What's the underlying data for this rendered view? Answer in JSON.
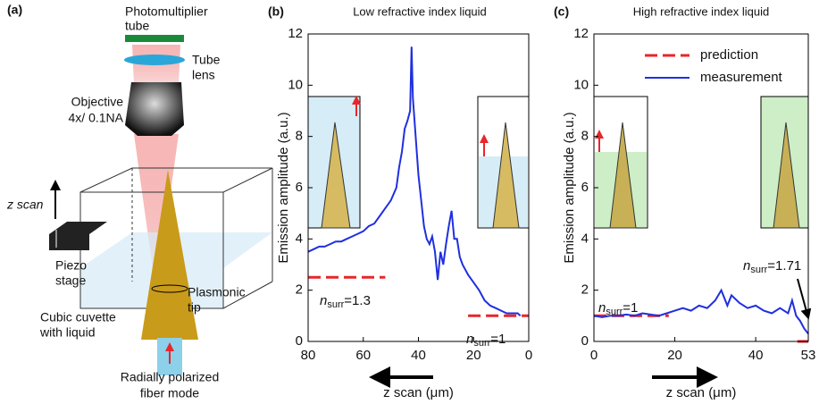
{
  "diagram": {
    "panel_label": "(a)",
    "photomultiplier": [
      "Photomultiplier",
      "tube"
    ],
    "tube_lens": [
      "Tube",
      "lens"
    ],
    "objective": [
      "Objective",
      "4x/ 0.1NA"
    ],
    "z_scan": "z scan",
    "piezo": [
      "Piezo",
      "stage"
    ],
    "cuvette": [
      "Cubic cuvette",
      "with liquid"
    ],
    "tip": [
      "Plasmonic",
      "tip"
    ],
    "fiber": [
      "Radially polarized",
      "fiber mode"
    ]
  },
  "chart_data": [
    {
      "type": "line",
      "panel_label": "(b)",
      "title": "Low refractive index liquid",
      "x_label": "z scan (μm)",
      "y_label": "Emission amplitude (a.u.)",
      "xlim": [
        80,
        0
      ],
      "xticks": [
        80,
        60,
        40,
        20,
        0
      ],
      "ylim": [
        0,
        12
      ],
      "yticks": [
        0,
        2,
        4,
        6,
        8,
        10,
        12
      ],
      "legend": false,
      "series": [
        {
          "name": "prediction",
          "color": "#e8262b",
          "dashed": true,
          "x": [
            80,
            52,
            null,
            22,
            0
          ],
          "values": [
            2.5,
            2.5,
            null,
            1,
            1
          ]
        },
        {
          "name": "measurement",
          "color": "#1f2fe0",
          "dashed": false,
          "x": [
            80,
            78,
            76,
            74,
            72,
            70,
            68,
            66,
            64,
            62,
            60,
            58,
            56,
            54,
            52,
            50,
            48,
            47,
            46,
            45,
            44,
            43,
            42.5,
            42,
            41,
            40,
            39,
            38,
            37,
            36,
            35,
            34,
            33,
            32,
            31,
            30,
            29,
            28,
            27,
            26,
            25,
            24,
            22,
            20,
            18,
            16,
            14,
            12,
            10,
            8,
            6,
            4,
            3
          ],
          "values": [
            3.5,
            3.6,
            3.7,
            3.7,
            3.8,
            3.9,
            3.9,
            4.0,
            4.1,
            4.2,
            4.3,
            4.5,
            4.6,
            4.9,
            5.2,
            5.5,
            6.0,
            6.8,
            7.4,
            8.3,
            8.6,
            9.0,
            11.5,
            9.5,
            8.0,
            6.5,
            5.5,
            4.5,
            4.0,
            3.8,
            4.1,
            3.5,
            2.4,
            3.5,
            3.0,
            3.8,
            4.5,
            5.1,
            4.0,
            4.0,
            3.3,
            3.0,
            2.6,
            2.3,
            2.0,
            1.6,
            1.4,
            1.3,
            1.2,
            1.1,
            1.1,
            1.1,
            1.0
          ]
        }
      ],
      "annotations": [
        {
          "italic": "n",
          "sub": "surr",
          "text": "=1.3"
        },
        {
          "italic": "n",
          "sub": "surr",
          "text": "=1"
        }
      ]
    },
    {
      "type": "line",
      "panel_label": "(c)",
      "title": "High refractive index liquid",
      "x_label": "z scan (μm)",
      "y_label": "Emission amplitude (a.u.)",
      "xlim": [
        0,
        53
      ],
      "xticks": [
        0,
        20,
        40,
        53
      ],
      "ylim": [
        0,
        12
      ],
      "yticks": [
        0,
        2,
        4,
        6,
        8,
        10,
        12
      ],
      "legend": true,
      "legend_loc": "upper right",
      "series": [
        {
          "name": "prediction",
          "color": "#e8262b",
          "dashed": true,
          "x": [
            0,
            18.5,
            null,
            50.3,
            53
          ],
          "values": [
            1,
            1,
            null,
            0,
            0
          ]
        },
        {
          "name": "measurement",
          "color": "#1f2fe0",
          "dashed": false,
          "x": [
            0,
            2,
            4,
            6,
            8,
            10,
            12,
            14,
            16,
            18,
            20,
            22,
            24,
            26,
            28,
            30,
            31.5,
            33,
            34,
            36,
            38,
            40,
            42,
            44,
            46,
            48,
            49,
            50,
            51,
            52,
            53
          ],
          "values": [
            1.0,
            0.95,
            1.0,
            1.0,
            1.05,
            1.0,
            1.1,
            1.05,
            1.0,
            1.1,
            1.2,
            1.3,
            1.2,
            1.4,
            1.3,
            1.6,
            2.0,
            1.4,
            1.8,
            1.5,
            1.3,
            1.4,
            1.2,
            1.1,
            1.3,
            1.1,
            1.6,
            1.0,
            0.8,
            0.5,
            0.3
          ]
        }
      ],
      "annotations": [
        {
          "italic": "n",
          "sub": "surr",
          "text": "=1"
        },
        {
          "italic": "n",
          "sub": "surr",
          "text": "=1.71"
        }
      ]
    }
  ]
}
